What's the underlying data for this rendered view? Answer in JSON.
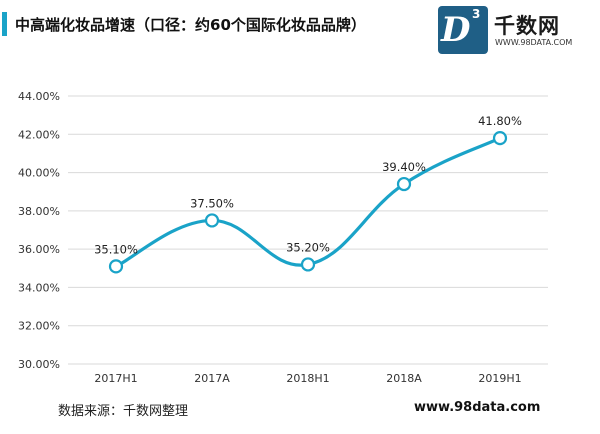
{
  "header": {
    "title": "中高端化妆品增速（口径：约60个国际化妆品品牌）"
  },
  "logo": {
    "letter": "D",
    "superscript": "3",
    "name": "千数网",
    "url": "WWW.98DATA.COM"
  },
  "footer": {
    "source": "数据来源：千数网整理",
    "website": "www.98data.com"
  },
  "chart_data": {
    "type": "line",
    "title": "中高端化妆品增速（口径：约60个国际化妆品品牌）",
    "categories": [
      "2017H1",
      "2017A",
      "2018H1",
      "2018A",
      "2019H1"
    ],
    "series": [
      {
        "values": [
          35.1,
          37.5,
          35.2,
          39.4,
          41.8
        ],
        "labels": [
          "35.10%",
          "37.50%",
          "35.20%",
          "39.40%",
          "41.80%"
        ]
      }
    ],
    "ylim": [
      30,
      44
    ],
    "yticks": [
      30,
      32,
      34,
      36,
      38,
      40,
      42,
      44
    ],
    "ytick_labels": [
      "30.00%",
      "32.00%",
      "34.00%",
      "36.00%",
      "38.00%",
      "40.00%",
      "42.00%",
      "44.00%"
    ],
    "xlabel": "",
    "ylabel": "",
    "grid": true,
    "smooth": true,
    "line_color": "#1aa3c8",
    "grid_color": "#d9d9d9"
  }
}
